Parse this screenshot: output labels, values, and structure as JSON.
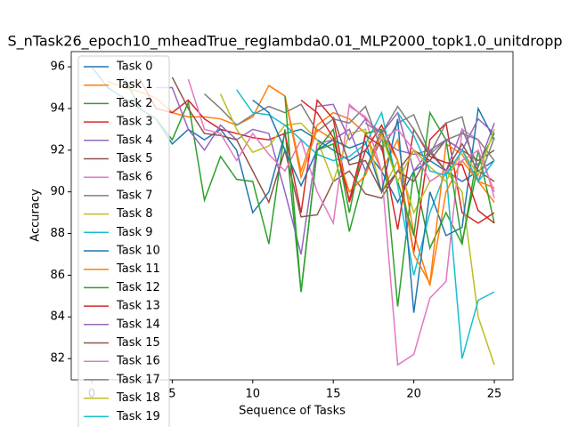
{
  "chart_data": {
    "type": "line",
    "title": "S_nTask26_epoch10_mheadTrue_reglambda0.01_MLP2000_topk1.0_unitdropp",
    "x_label": "Sequence of Tasks",
    "y_label": "Accuracy",
    "x": [
      0,
      1,
      2,
      3,
      4,
      5,
      6,
      7,
      8,
      9,
      10,
      11,
      12,
      13,
      14,
      15,
      16,
      17,
      18,
      19,
      20,
      21,
      22,
      23,
      24,
      25
    ],
    "xlim": [
      -1.27,
      26.16
    ],
    "xticks": [
      0,
      5,
      10,
      15,
      20,
      25
    ],
    "ylim": [
      80.98,
      96.73
    ],
    "yticks": [
      82,
      84,
      86,
      88,
      90,
      92,
      94,
      96
    ],
    "legend": "upper left",
    "series": [
      {
        "name": "Task 0",
        "color": "#1f77b4",
        "values": [
          96.0,
          95.0,
          94.5,
          94.0,
          93.5,
          92.3,
          93.0,
          92.5,
          93.0,
          92.0,
          89.0,
          90.0,
          92.8,
          93.0,
          92.5,
          92.0,
          91.5,
          92.0,
          91.0,
          89.5,
          91.0,
          91.5,
          91.0,
          90.5,
          91.0,
          91.5
        ]
      },
      {
        "name": "Task 1",
        "color": "#ff7f0e",
        "values": [
          null,
          95.3,
          95.0,
          94.8,
          94.5,
          93.8,
          93.6,
          93.6,
          93.5,
          93.2,
          93.6,
          95.1,
          94.6,
          91.0,
          93.2,
          93.8,
          93.5,
          92.8,
          91.0,
          92.5,
          88.0,
          85.5,
          90.0,
          91.5,
          90.5,
          89.5
        ]
      },
      {
        "name": "Task 2",
        "color": "#2ca02c",
        "values": [
          null,
          null,
          95.5,
          94.0,
          93.5,
          92.5,
          94.3,
          89.6,
          91.7,
          90.6,
          90.5,
          87.5,
          93.0,
          85.2,
          92.0,
          92.3,
          88.1,
          91.0,
          93.0,
          84.5,
          91.0,
          87.3,
          89.0,
          87.5,
          92.0,
          88.5
        ]
      },
      {
        "name": "Task 3",
        "color": "#d62728",
        "values": [
          null,
          null,
          null,
          95.4,
          94.0,
          93.8,
          94.4,
          93.5,
          93.0,
          92.8,
          92.6,
          92.5,
          92.8,
          89.0,
          94.4,
          93.5,
          89.5,
          92.0,
          93.2,
          91.5,
          87.1,
          92.5,
          93.3,
          89.0,
          88.5,
          89.0
        ]
      },
      {
        "name": "Task 4",
        "color": "#9467bd",
        "values": [
          null,
          null,
          null,
          null,
          95.0,
          95.0,
          93.0,
          92.0,
          93.2,
          92.5,
          93.0,
          92.8,
          90.0,
          87.0,
          92.3,
          92.5,
          93.0,
          91.0,
          92.5,
          92.0,
          91.8,
          92.0,
          91.0,
          93.0,
          91.2,
          93.3
        ]
      },
      {
        "name": "Task 5",
        "color": "#8c564b",
        "values": [
          null,
          null,
          null,
          null,
          null,
          95.5,
          94.0,
          92.8,
          92.7,
          92.5,
          91.0,
          89.5,
          92.0,
          88.8,
          88.9,
          90.5,
          91.0,
          89.9,
          89.7,
          91.0,
          92.0,
          91.5,
          92.5,
          92.0,
          91.5,
          92.0
        ]
      },
      {
        "name": "Task 6",
        "color": "#e377c2",
        "values": [
          null,
          null,
          null,
          null,
          null,
          null,
          95.4,
          93.0,
          92.8,
          91.5,
          92.8,
          91.8,
          91.0,
          92.5,
          90.0,
          88.5,
          94.2,
          93.5,
          91.0,
          81.7,
          82.2,
          84.9,
          85.7,
          93.0,
          92.5,
          89.7
        ]
      },
      {
        "name": "Task 7",
        "color": "#7f7f7f",
        "values": [
          null,
          null,
          null,
          null,
          null,
          null,
          null,
          94.7,
          94.0,
          93.2,
          93.7,
          94.1,
          93.8,
          94.2,
          92.9,
          93.5,
          93.3,
          94.1,
          92.0,
          93.3,
          93.7,
          91.8,
          92.5,
          92.8,
          92.5,
          91.5
        ]
      },
      {
        "name": "Task 8",
        "color": "#bcbd22",
        "values": [
          null,
          null,
          null,
          null,
          null,
          null,
          null,
          null,
          94.7,
          93.0,
          91.9,
          92.2,
          93.2,
          93.3,
          92.5,
          90.5,
          92.8,
          93.0,
          90.0,
          91.5,
          89.0,
          90.5,
          91.0,
          90.0,
          84.0,
          81.7
        ]
      },
      {
        "name": "Task 9",
        "color": "#17becf",
        "values": [
          null,
          null,
          null,
          null,
          null,
          null,
          null,
          null,
          null,
          94.9,
          93.8,
          93.7,
          93.2,
          92.5,
          91.8,
          91.5,
          91.7,
          92.3,
          93.8,
          90.3,
          86.0,
          89.0,
          91.0,
          82.0,
          84.8,
          85.2
        ]
      },
      {
        "name": "Task 10",
        "color": "#1f77b4",
        "values": [
          null,
          null,
          null,
          null,
          null,
          null,
          null,
          null,
          null,
          null,
          94.4,
          93.8,
          92.0,
          90.3,
          92.0,
          92.5,
          92.1,
          92.4,
          90.0,
          93.5,
          84.2,
          90.0,
          87.9,
          88.3,
          94.0,
          92.5
        ]
      },
      {
        "name": "Task 11",
        "color": "#ff7f0e",
        "values": [
          null,
          null,
          null,
          null,
          null,
          null,
          null,
          null,
          null,
          null,
          null,
          95.1,
          94.6,
          90.7,
          93.0,
          92.5,
          90.0,
          90.8,
          92.8,
          91.5,
          87.0,
          85.6,
          92.3,
          91.8,
          90.5,
          90.2
        ]
      },
      {
        "name": "Task 12",
        "color": "#2ca02c",
        "values": [
          null,
          null,
          null,
          null,
          null,
          null,
          null,
          null,
          null,
          null,
          null,
          null,
          94.6,
          85.2,
          92.0,
          93.0,
          89.0,
          92.8,
          93.0,
          90.5,
          87.9,
          93.8,
          92.5,
          87.6,
          91.3,
          92.8
        ]
      },
      {
        "name": "Task 13",
        "color": "#d62728",
        "values": [
          null,
          null,
          null,
          null,
          null,
          null,
          null,
          null,
          null,
          null,
          null,
          null,
          null,
          94.4,
          93.8,
          92.6,
          89.6,
          92.7,
          92.2,
          88.2,
          93.0,
          91.7,
          91.4,
          91.3,
          89.1,
          88.5
        ]
      },
      {
        "name": "Task 14",
        "color": "#9467bd",
        "values": [
          null,
          null,
          null,
          null,
          null,
          null,
          null,
          null,
          null,
          null,
          null,
          null,
          null,
          null,
          94.1,
          94.2,
          92.5,
          93.5,
          92.8,
          93.8,
          91.0,
          92.0,
          92.5,
          92.0,
          93.5,
          92.8
        ]
      },
      {
        "name": "Task 15",
        "color": "#8c564b",
        "values": [
          null,
          null,
          null,
          null,
          null,
          null,
          null,
          null,
          null,
          null,
          null,
          null,
          null,
          null,
          null,
          93.6,
          91.3,
          91.5,
          90.0,
          91.0,
          90.5,
          91.9,
          91.0,
          92.3,
          91.0,
          90.5
        ]
      },
      {
        "name": "Task 16",
        "color": "#e377c2",
        "values": [
          null,
          null,
          null,
          null,
          null,
          null,
          null,
          null,
          null,
          null,
          null,
          null,
          null,
          null,
          null,
          null,
          94.1,
          93.6,
          92.5,
          93.0,
          92.0,
          90.5,
          91.0,
          91.5,
          92.0,
          90.0
        ]
      },
      {
        "name": "Task 17",
        "color": "#7f7f7f",
        "values": [
          null,
          null,
          null,
          null,
          null,
          null,
          null,
          null,
          null,
          null,
          null,
          null,
          null,
          null,
          null,
          null,
          null,
          93.3,
          92.8,
          94.1,
          93.0,
          91.8,
          93.3,
          93.6,
          90.5,
          92.6
        ]
      },
      {
        "name": "Task 18",
        "color": "#bcbd22",
        "values": [
          null,
          null,
          null,
          null,
          null,
          null,
          null,
          null,
          null,
          null,
          null,
          null,
          null,
          null,
          null,
          null,
          null,
          null,
          92.7,
          90.5,
          92.0,
          91.2,
          90.5,
          92.0,
          90.8,
          93.0
        ]
      },
      {
        "name": "Task 19",
        "color": "#17becf",
        "values": [
          null,
          null,
          null,
          null,
          null,
          null,
          null,
          null,
          null,
          null,
          null,
          null,
          null,
          null,
          null,
          null,
          null,
          null,
          null,
          93.8,
          92.7,
          91.0,
          90.8,
          92.0,
          90.5,
          91.5
        ]
      }
    ]
  }
}
